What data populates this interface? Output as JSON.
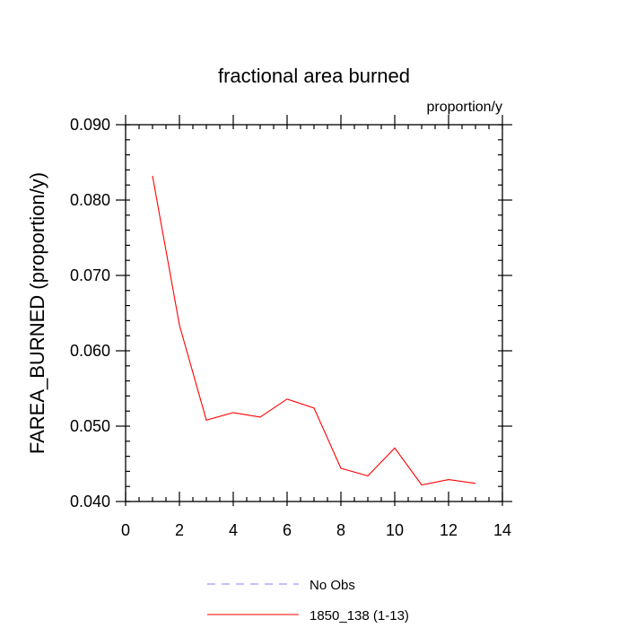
{
  "chart_data": {
    "type": "line",
    "title": "fractional area burned",
    "units_label": "proportion/y",
    "xlabel": "",
    "ylabel": "FAREA_BURNED  (proportion/y)",
    "xlim": [
      0,
      14
    ],
    "ylim": [
      0.04,
      0.09
    ],
    "x_ticks": [
      0,
      2,
      4,
      6,
      8,
      10,
      12,
      14
    ],
    "x_tick_labels": [
      "0",
      "2",
      "4",
      "6",
      "8",
      "10",
      "12",
      "14"
    ],
    "y_ticks": [
      0.04,
      0.05,
      0.06,
      0.07,
      0.08,
      0.09
    ],
    "y_tick_labels": [
      "0.040",
      "0.050",
      "0.060",
      "0.070",
      "0.080",
      "0.090"
    ],
    "grid": false,
    "legend_position": "bottom",
    "series": [
      {
        "name": "1850_138 (1-13)",
        "color": "#ff0000",
        "style": "solid",
        "x": [
          1,
          2,
          3,
          4,
          5,
          6,
          7,
          8,
          9,
          10,
          11,
          12,
          13
        ],
        "y": [
          0.0832,
          0.0634,
          0.0508,
          0.0518,
          0.0512,
          0.0536,
          0.0524,
          0.0444,
          0.0434,
          0.0471,
          0.0422,
          0.0429,
          0.0424
        ]
      }
    ],
    "legend": [
      {
        "label": "No Obs",
        "color": "#8080ff",
        "style": "dashed"
      },
      {
        "label": "1850_138 (1-13)",
        "color": "#ff0000",
        "style": "solid"
      }
    ]
  }
}
